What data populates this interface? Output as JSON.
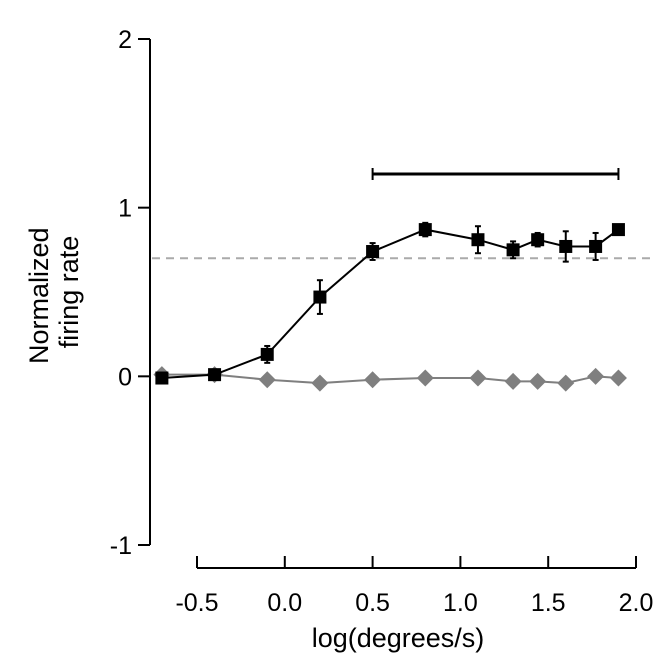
{
  "chart_data": {
    "type": "line",
    "title": "",
    "xlabel": "log(degrees/s)",
    "ylabel_lines": [
      "Normalized",
      "firing rate"
    ],
    "xlim": [
      -0.5,
      2.0
    ],
    "ylim": [
      -1,
      2
    ],
    "x_ticks": [
      -0.5,
      0.0,
      0.5,
      1.0,
      1.5,
      2.0
    ],
    "x_tick_labels": [
      "-0.5",
      "0.0",
      "0.5",
      "1.0",
      "1.5",
      "2.0"
    ],
    "y_ticks": [
      -1,
      0,
      1,
      2
    ],
    "y_tick_labels": [
      "-1",
      "0",
      "1",
      "2"
    ],
    "reference_line": {
      "y": 0.7,
      "style": "dashed",
      "color": "#aaaaaa"
    },
    "significance_bar": {
      "x_start": 0.5,
      "x_end": 1.9
    },
    "series": [
      {
        "marker": "square",
        "color": "#000000",
        "points": [
          {
            "x": -0.7,
            "y": -0.01,
            "err": 0.02
          },
          {
            "x": -0.4,
            "y": 0.01,
            "err": 0.02
          },
          {
            "x": -0.1,
            "y": 0.13,
            "err": 0.05
          },
          {
            "x": 0.2,
            "y": 0.47,
            "err": 0.1
          },
          {
            "x": 0.5,
            "y": 0.74,
            "err": 0.05
          },
          {
            "x": 0.8,
            "y": 0.87,
            "err": 0.04
          },
          {
            "x": 1.1,
            "y": 0.81,
            "err": 0.08
          },
          {
            "x": 1.3,
            "y": 0.75,
            "err": 0.05
          },
          {
            "x": 1.44,
            "y": 0.81,
            "err": 0.04
          },
          {
            "x": 1.6,
            "y": 0.77,
            "err": 0.09
          },
          {
            "x": 1.77,
            "y": 0.77,
            "err": 0.08
          },
          {
            "x": 1.9,
            "y": 0.87,
            "err": 0.03
          }
        ]
      },
      {
        "marker": "diamond",
        "color": "#7f7f7f",
        "points": [
          {
            "x": -0.7,
            "y": 0.01
          },
          {
            "x": -0.4,
            "y": 0.01
          },
          {
            "x": -0.1,
            "y": -0.02
          },
          {
            "x": 0.2,
            "y": -0.04
          },
          {
            "x": 0.5,
            "y": -0.02
          },
          {
            "x": 0.8,
            "y": -0.01
          },
          {
            "x": 1.1,
            "y": -0.01
          },
          {
            "x": 1.3,
            "y": -0.03
          },
          {
            "x": 1.44,
            "y": -0.03
          },
          {
            "x": 1.6,
            "y": -0.04
          },
          {
            "x": 1.77,
            "y": 0.0
          },
          {
            "x": 1.9,
            "y": -0.01
          }
        ]
      }
    ]
  }
}
